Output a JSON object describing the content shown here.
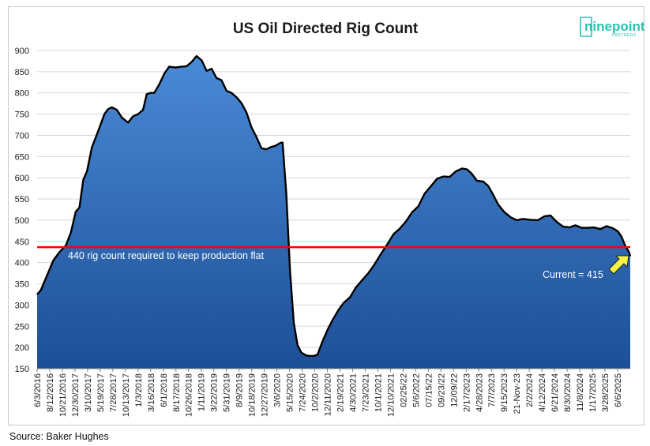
{
  "logo": {
    "text": "ninepoint",
    "sub": "PARTNERS"
  },
  "source": "Source: Baker Hughes",
  "colors": {
    "fill_top": "#4a8ad6",
    "fill_bottom": "#1c4f96",
    "line": "#000000",
    "threshold": "#ff0000",
    "arrow": "#f7f24a",
    "logo": "#27c4b4"
  },
  "chart_data": {
    "type": "area",
    "title": "US Oil Directed Rig Count",
    "xlabel": "",
    "ylabel": "",
    "ylim": [
      150,
      900
    ],
    "yticks": [
      150,
      200,
      250,
      300,
      350,
      400,
      450,
      500,
      550,
      600,
      650,
      700,
      750,
      800,
      850,
      900
    ],
    "grid": true,
    "xrange": [
      "2016-06-03",
      "2025-07-18"
    ],
    "xtick_labels": [
      "6/3/2016",
      "8/12/2016",
      "10/21/2016",
      "12/30/2017",
      "3/10/2017",
      "5/19/2017",
      "7/28/2017",
      "10/13/2017",
      "1/3/2018",
      "3/16/2018",
      "6/1/2018",
      "8/17/2018",
      "10/26/2018",
      "1/11/2019",
      "3/22/2019",
      "5/31/2019",
      "8/9/2019",
      "10/18/2019",
      "12/27/2019",
      "3/6/2020",
      "5/15/2020",
      "7/24/2020",
      "10/2/2020",
      "12/11/2020",
      "2/19/2021",
      "4/30/2021",
      "7/23/2021",
      "10/1/2021",
      "12/10/2021",
      "02/25/22",
      "5/6/2022",
      "07/15/22",
      "09/23/22",
      "12/09/22",
      "2/17/2023",
      "4/28/2023",
      "7/7/2023",
      "9/15/2023",
      "21-Nov-23",
      "2/2/2024",
      "4/12/2024",
      "6/21/2024",
      "8/30/2024",
      "11/8/2024",
      "1/17/2025",
      "3/28/2025",
      "6/6/2025"
    ],
    "series": [
      {
        "points": [
          [
            "2016-06-03",
            325
          ],
          [
            "2016-06-24",
            335
          ],
          [
            "2016-07-29",
            370
          ],
          [
            "2016-09-02",
            405
          ],
          [
            "2016-10-07",
            425
          ],
          [
            "2016-11-11",
            440
          ],
          [
            "2016-12-09",
            470
          ],
          [
            "2017-01-06",
            520
          ],
          [
            "2017-01-27",
            530
          ],
          [
            "2017-02-17",
            595
          ],
          [
            "2017-03-10",
            615
          ],
          [
            "2017-04-07",
            672
          ],
          [
            "2017-05-12",
            710
          ],
          [
            "2017-06-16",
            750
          ],
          [
            "2017-07-07",
            762
          ],
          [
            "2017-07-28",
            766
          ],
          [
            "2017-08-25",
            760
          ],
          [
            "2017-09-22",
            742
          ],
          [
            "2017-10-27",
            730
          ],
          [
            "2017-11-24",
            745
          ],
          [
            "2017-12-22",
            750
          ],
          [
            "2018-01-19",
            760
          ],
          [
            "2018-02-09",
            797
          ],
          [
            "2018-03-02",
            800
          ],
          [
            "2018-03-23",
            800
          ],
          [
            "2018-04-20",
            820
          ],
          [
            "2018-05-18",
            845
          ],
          [
            "2018-06-15",
            862
          ],
          [
            "2018-07-20",
            860
          ],
          [
            "2018-08-24",
            862
          ],
          [
            "2018-09-21",
            863
          ],
          [
            "2018-10-19",
            873
          ],
          [
            "2018-11-16",
            887
          ],
          [
            "2018-12-14",
            877
          ],
          [
            "2019-01-11",
            852
          ],
          [
            "2019-02-08",
            857
          ],
          [
            "2019-03-08",
            835
          ],
          [
            "2019-04-05",
            830
          ],
          [
            "2019-05-03",
            805
          ],
          [
            "2019-05-31",
            800
          ],
          [
            "2019-06-28",
            790
          ],
          [
            "2019-07-26",
            776
          ],
          [
            "2019-08-23",
            754
          ],
          [
            "2019-09-20",
            719
          ],
          [
            "2019-10-18",
            696
          ],
          [
            "2019-11-15",
            670
          ],
          [
            "2019-12-13",
            667
          ],
          [
            "2020-01-10",
            673
          ],
          [
            "2020-01-31",
            675
          ],
          [
            "2020-02-28",
            682
          ],
          [
            "2020-03-13",
            683
          ],
          [
            "2020-04-03",
            562
          ],
          [
            "2020-04-24",
            378
          ],
          [
            "2020-05-15",
            258
          ],
          [
            "2020-06-05",
            206
          ],
          [
            "2020-06-26",
            188
          ],
          [
            "2020-07-24",
            181
          ],
          [
            "2020-08-14",
            180
          ],
          [
            "2020-09-04",
            180
          ],
          [
            "2020-09-25",
            183
          ],
          [
            "2020-10-23",
            214
          ],
          [
            "2020-11-20",
            241
          ],
          [
            "2020-12-18",
            264
          ],
          [
            "2021-01-22",
            289
          ],
          [
            "2021-02-19",
            305
          ],
          [
            "2021-03-26",
            318
          ],
          [
            "2021-04-30",
            342
          ],
          [
            "2021-06-04",
            359
          ],
          [
            "2021-07-09",
            376
          ],
          [
            "2021-08-13",
            397
          ],
          [
            "2021-09-17",
            421
          ],
          [
            "2021-10-22",
            443
          ],
          [
            "2021-11-26",
            467
          ],
          [
            "2021-12-31",
            480
          ],
          [
            "2022-02-04",
            497
          ],
          [
            "2022-03-11",
            519
          ],
          [
            "2022-04-15",
            533
          ],
          [
            "2022-05-20",
            563
          ],
          [
            "2022-06-24",
            580
          ],
          [
            "2022-07-29",
            598
          ],
          [
            "2022-09-02",
            603
          ],
          [
            "2022-10-07",
            602
          ],
          [
            "2022-11-11",
            615
          ],
          [
            "2022-12-16",
            622
          ],
          [
            "2023-01-13",
            620
          ],
          [
            "2023-02-10",
            609
          ],
          [
            "2023-03-10",
            593
          ],
          [
            "2023-04-14",
            591
          ],
          [
            "2023-05-12",
            581
          ],
          [
            "2023-06-09",
            560
          ],
          [
            "2023-07-07",
            537
          ],
          [
            "2023-08-11",
            519
          ],
          [
            "2023-09-15",
            507
          ],
          [
            "2023-10-20",
            500
          ],
          [
            "2023-11-24",
            503
          ],
          [
            "2024-01-05",
            501
          ],
          [
            "2024-02-16",
            500
          ],
          [
            "2024-03-22",
            509
          ],
          [
            "2024-04-26",
            511
          ],
          [
            "2024-05-31",
            496
          ],
          [
            "2024-07-05",
            485
          ],
          [
            "2024-08-09",
            483
          ],
          [
            "2024-09-13",
            488
          ],
          [
            "2024-10-18",
            482
          ],
          [
            "2024-11-22",
            482
          ],
          [
            "2024-12-27",
            483
          ],
          [
            "2025-01-31",
            479
          ],
          [
            "2025-03-07",
            486
          ],
          [
            "2025-04-11",
            481
          ],
          [
            "2025-05-09",
            474
          ],
          [
            "2025-05-30",
            461
          ],
          [
            "2025-06-20",
            439
          ],
          [
            "2025-07-11",
            425
          ],
          [
            "2025-07-18",
            415
          ]
        ]
      }
    ],
    "threshold": {
      "value": 440,
      "label": "440 rig count required to keep production flat"
    },
    "callout": {
      "label": "Current = 415",
      "value": 415
    }
  }
}
